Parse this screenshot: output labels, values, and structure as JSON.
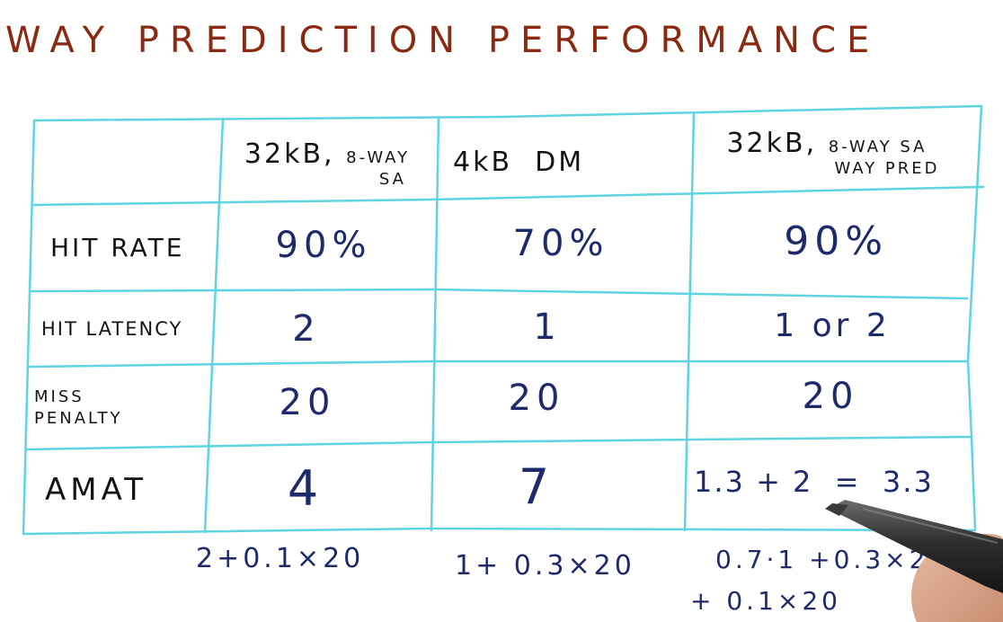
{
  "title": "WAY PREDICTION PERFORMANCE",
  "columns": [
    {
      "line1": "32kB,",
      "line1_small": "8-WAY",
      "line2": "SA"
    },
    {
      "line1": "4kB  DM",
      "line1_small": "",
      "line2": ""
    },
    {
      "line1": "32kB,",
      "line1_small": "8-WAY SA",
      "line2": "WAY PRED"
    }
  ],
  "rows": [
    {
      "label": "HIT RATE",
      "label2": "",
      "values": [
        "90%",
        "70%",
        "90%"
      ]
    },
    {
      "label": "HIT LATENCY",
      "label2": "",
      "values": [
        "2",
        "1",
        "1 or 2"
      ]
    },
    {
      "label": "MISS",
      "label2": "PENALTY",
      "values": [
        "20",
        "20",
        "20"
      ]
    },
    {
      "label": "AMAT",
      "label2": "",
      "values": [
        "4",
        "7",
        "1.3 + 2  =  3.3"
      ]
    }
  ],
  "notes": {
    "col1": "2+0.1×20",
    "col2": "1+ 0.3×20",
    "col3_line1": "0.7·1 +0.3×2",
    "col3_line2": "+ 0.1×20"
  },
  "colors": {
    "title": "#8a2a12",
    "grid": "#5fd4e3",
    "ink": "#1f2a6b",
    "label_ink": "#141414"
  }
}
